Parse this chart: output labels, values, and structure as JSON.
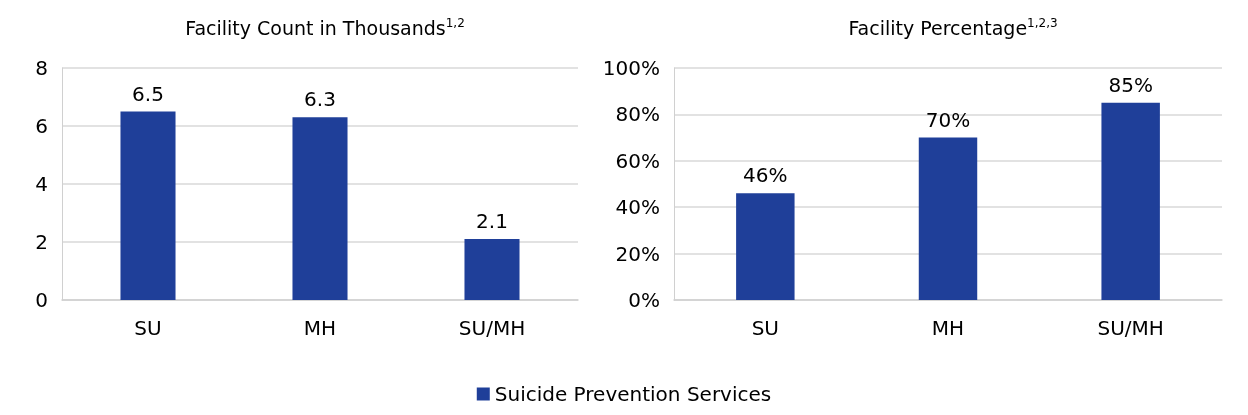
{
  "chart_data": [
    {
      "type": "bar",
      "title": "Facility Count in Thousands$^{1,2}$",
      "categories": [
        "SU",
        "MH",
        "SU/MH"
      ],
      "series": [
        {
          "color": "#1f3f99",
          "values": [
            6.5,
            6.3,
            2.1
          ]
        }
      ],
      "ylim": [
        0,
        8
      ],
      "yticks": [
        0,
        2,
        4,
        6,
        8
      ],
      "grid": "y",
      "data_labels": true,
      "legend": false
    },
    {
      "type": "bar",
      "title": "Facility Percentage$^{1,2,3}$",
      "categories": [
        "SU",
        "MH",
        "SU/MH"
      ],
      "series": [
        {
          "name": "Suicide Prevention Services",
          "color": "#1f3f99",
          "values": [
            46,
            70,
            85
          ],
          "value_labels": [
            "46%",
            "70%",
            "85%"
          ]
        }
      ],
      "ylim": [
        0,
        100
      ],
      "yticks": [
        {
          "value": 0,
          "label": "0%"
        },
        {
          "value": 20,
          "label": "20%"
        },
        {
          "value": 40,
          "label": "40%"
        },
        {
          "value": 60,
          "label": "60%"
        },
        {
          "value": 80,
          "label": "80%"
        },
        {
          "value": 100,
          "label": "100%"
        }
      ],
      "grid": "y",
      "legend": "bottom"
    }
  ]
}
